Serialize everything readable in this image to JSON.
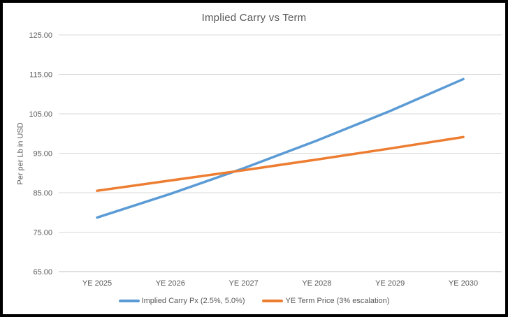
{
  "chart_data": {
    "type": "line",
    "title": "Implied Carry vs Term",
    "ylabel": "Per per Lb in USD",
    "xlabel": "",
    "categories": [
      "YE 2025",
      "YE 2026",
      "YE 2027",
      "YE 2028",
      "YE 2029",
      "YE 2030"
    ],
    "series": [
      {
        "name": "Implied Carry Px (2.5%, 5.0%)",
        "color": "#5B9BD5",
        "values": [
          78.7,
          84.7,
          91.2,
          98.2,
          105.7,
          113.8
        ]
      },
      {
        "name": "YE Term Price (3% escalation)",
        "color": "#ED7D31",
        "values": [
          85.5,
          88.1,
          90.7,
          93.4,
          96.2,
          99.1
        ]
      }
    ],
    "ylim": [
      65,
      125
    ],
    "yticks": [
      {
        "value": 65,
        "label": "65.00"
      },
      {
        "value": 75,
        "label": "75.00"
      },
      {
        "value": 85,
        "label": "85.00"
      },
      {
        "value": 95,
        "label": "95.00"
      },
      {
        "value": 105,
        "label": "105.00"
      },
      {
        "value": 115,
        "label": "115.00"
      },
      {
        "value": 125,
        "label": "125.00"
      }
    ],
    "grid": true,
    "legend_position": "bottom",
    "style": {
      "text_color": "#595959",
      "gridline_color": "#D9D9D9",
      "axis_line_color": "#BFBFBF",
      "background": "#FFFFFF",
      "frame_border_color": "#000000"
    }
  }
}
